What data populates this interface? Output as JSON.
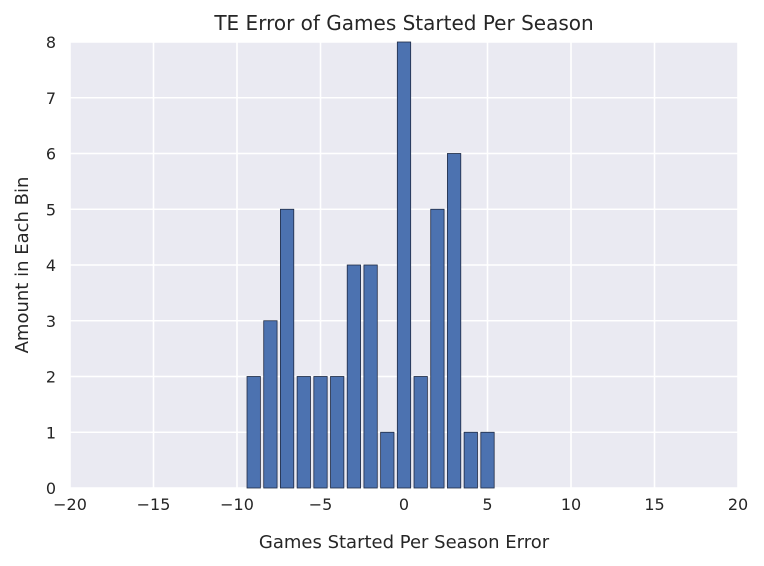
{
  "chart_data": {
    "type": "bar",
    "title": "TE Error of Games Started Per Season",
    "xlabel": "Games Started Per Season Error",
    "ylabel": "Amount in Each Bin",
    "xlim": [
      -20,
      20
    ],
    "ylim": [
      0,
      8
    ],
    "xticks": [
      "−20",
      "−15",
      "−10",
      "−5",
      "0",
      "5",
      "10",
      "15",
      "20"
    ],
    "yticks": [
      "0",
      "1",
      "2",
      "3",
      "4",
      "5",
      "6",
      "7",
      "8"
    ],
    "grid": true,
    "bin_width": 0.8,
    "bars": [
      {
        "x": -9,
        "value": 2
      },
      {
        "x": -8,
        "value": 3
      },
      {
        "x": -7,
        "value": 5
      },
      {
        "x": -6,
        "value": 2
      },
      {
        "x": -5,
        "value": 2
      },
      {
        "x": -4,
        "value": 2
      },
      {
        "x": -3,
        "value": 4
      },
      {
        "x": -2,
        "value": 4
      },
      {
        "x": -1,
        "value": 1
      },
      {
        "x": 0,
        "value": 8
      },
      {
        "x": 1,
        "value": 2
      },
      {
        "x": 2,
        "value": 5
      },
      {
        "x": 3,
        "value": 6
      },
      {
        "x": 4,
        "value": 1
      },
      {
        "x": 5,
        "value": 1
      }
    ],
    "colors": {
      "background": "#EAEAF2",
      "grid": "#FFFFFF",
      "bar": "#4C72B0",
      "bar_edge": "#1F2A44",
      "text": "#262626"
    }
  }
}
